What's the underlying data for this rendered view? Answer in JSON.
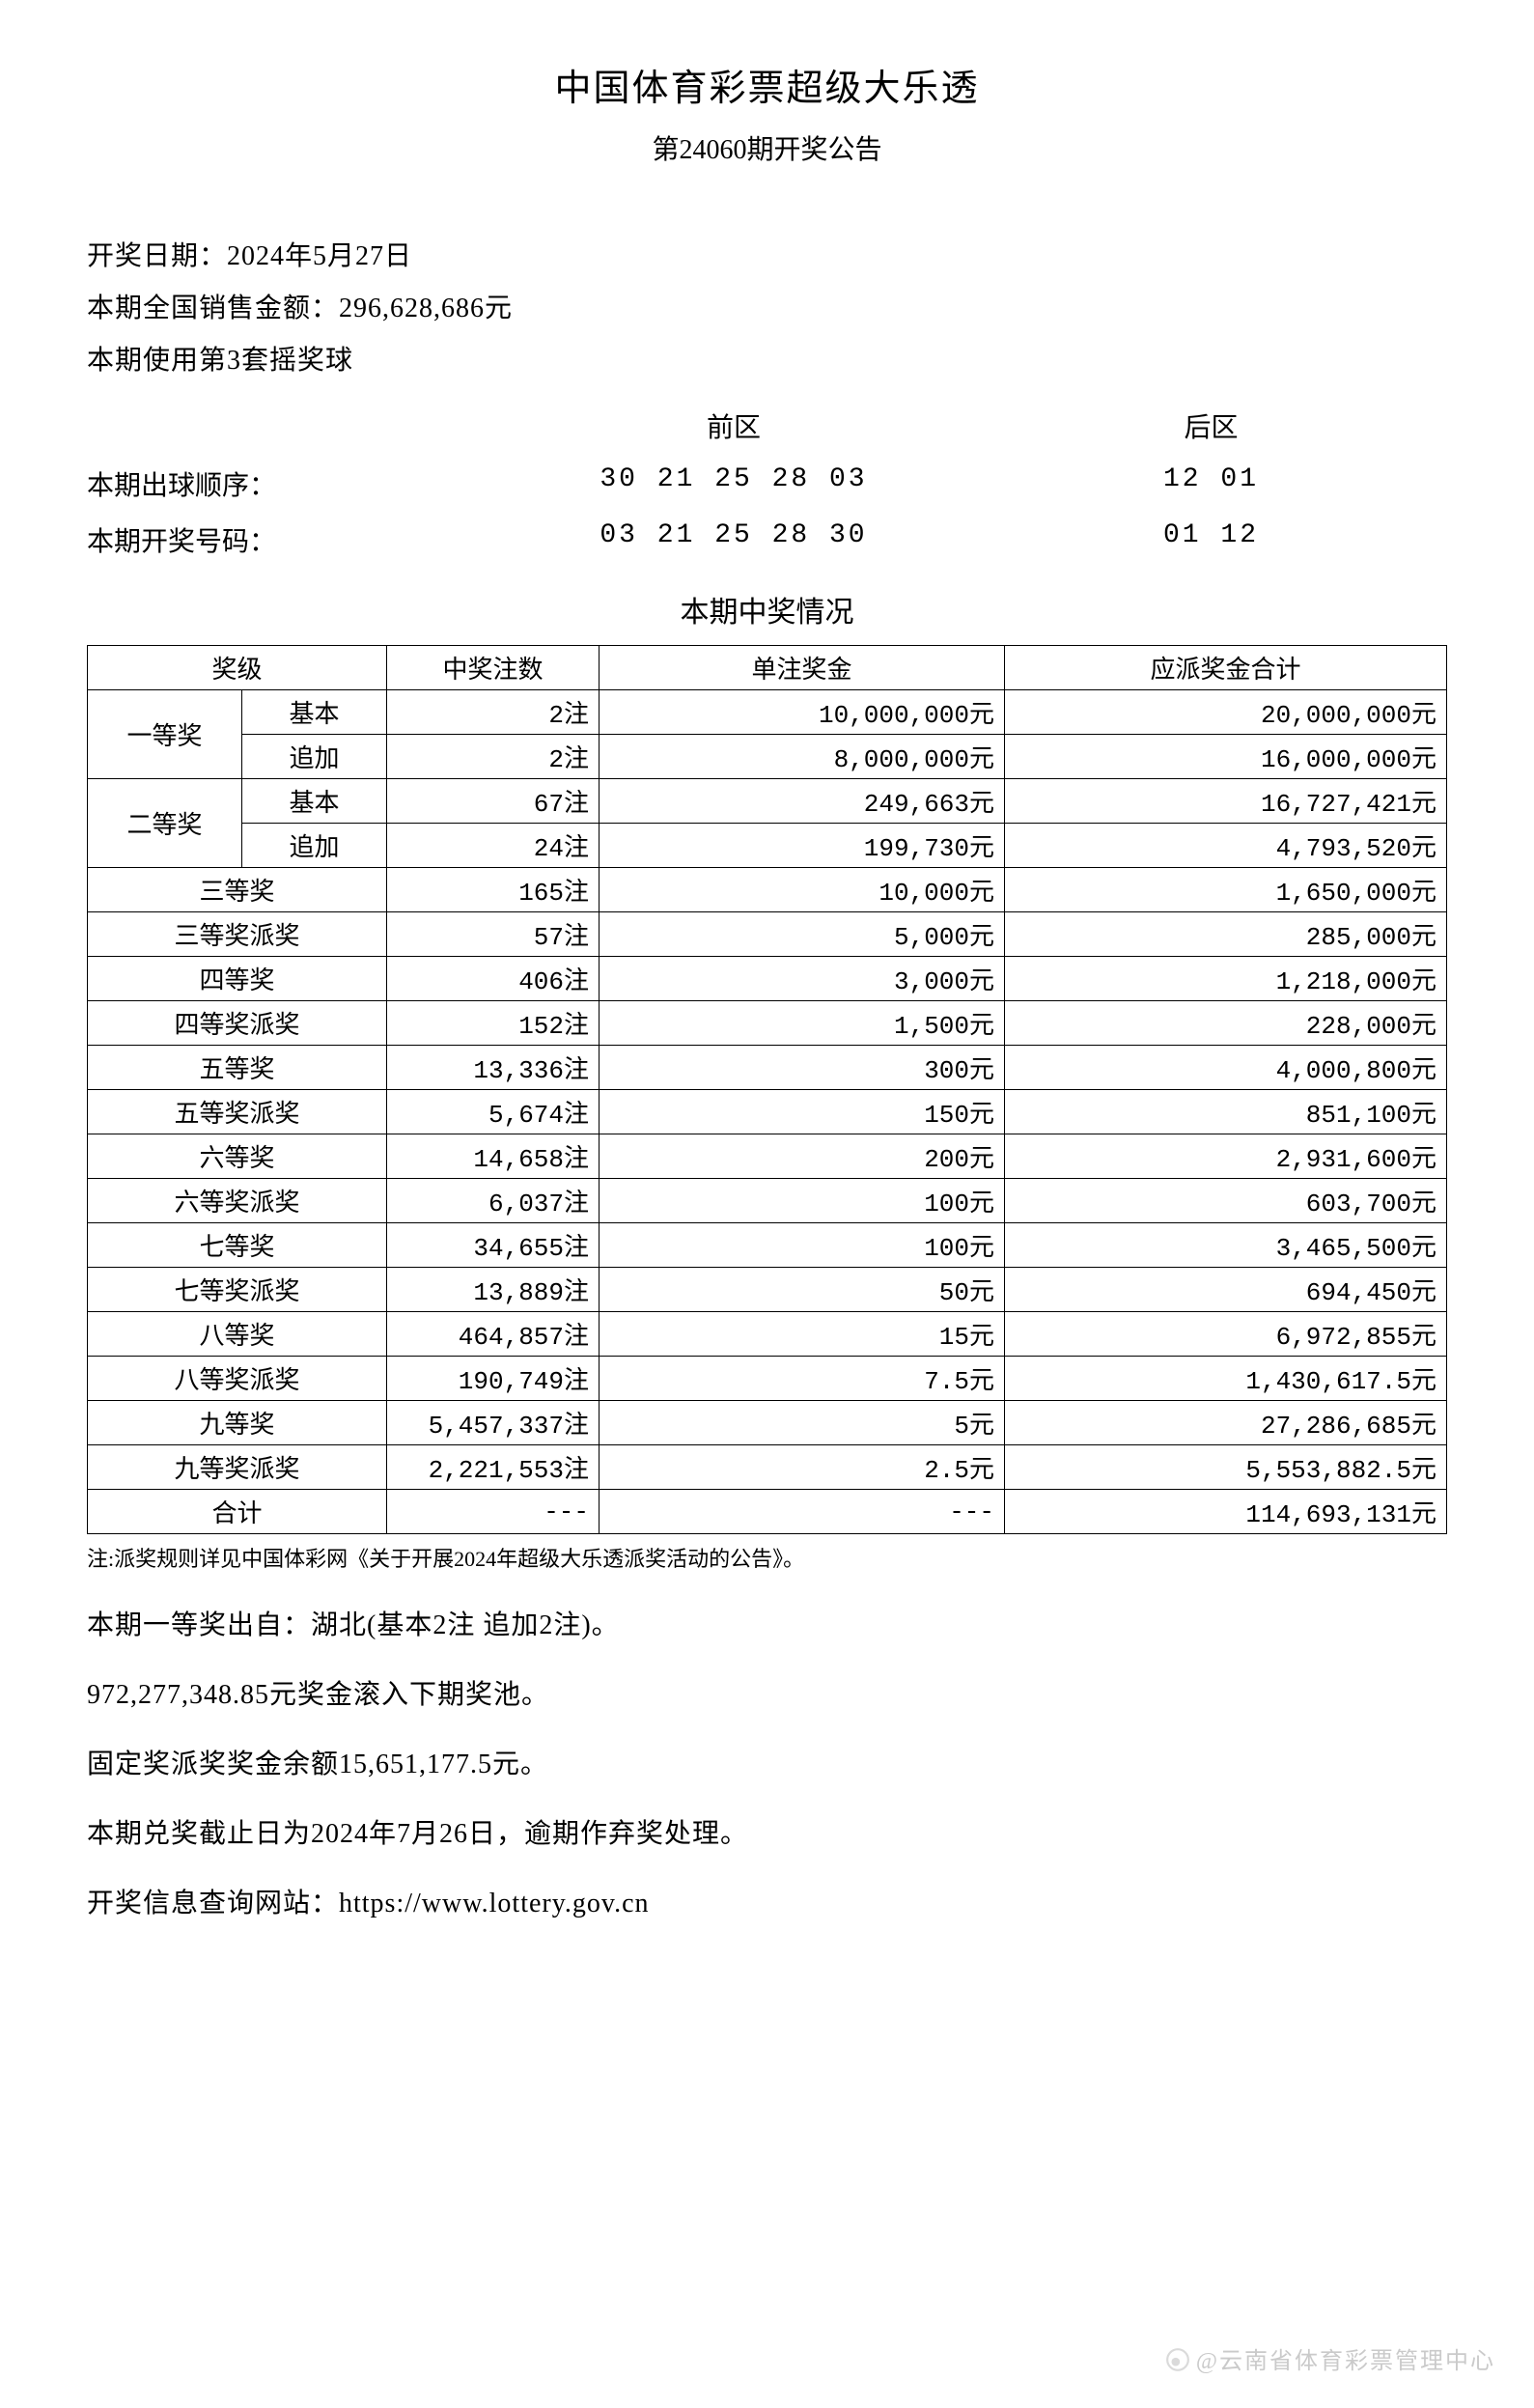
{
  "header": {
    "title": "中国体育彩票超级大乐透",
    "subtitle": "第24060期开奖公告"
  },
  "info": {
    "draw_date": "开奖日期：2024年5月27日",
    "sales_amount": "本期全国销售金额：296,628,686元",
    "ball_set": "本期使用第3套摇奖球"
  },
  "areas": {
    "front_label": "前区",
    "back_label": "后区"
  },
  "draw_order": {
    "label": "本期出球顺序：",
    "front": "30 21 25 28 03",
    "back": "12 01"
  },
  "winning_numbers": {
    "label": "本期开奖号码：",
    "front": "03 21 25 28 30",
    "back": "01 12"
  },
  "prize_section_title": "本期中奖情况",
  "table": {
    "headers": {
      "level": "奖级",
      "count": "中奖注数",
      "amount": "单注奖金",
      "total": "应派奖金合计"
    },
    "grouped": [
      {
        "level": "一等奖",
        "rows": [
          {
            "sub": "基本",
            "count": "2注",
            "amount": "10,000,000元",
            "total": "20,000,000元"
          },
          {
            "sub": "追加",
            "count": "2注",
            "amount": "8,000,000元",
            "total": "16,000,000元"
          }
        ]
      },
      {
        "level": "二等奖",
        "rows": [
          {
            "sub": "基本",
            "count": "67注",
            "amount": "249,663元",
            "total": "16,727,421元"
          },
          {
            "sub": "追加",
            "count": "24注",
            "amount": "199,730元",
            "total": "4,793,520元"
          }
        ]
      }
    ],
    "simple": [
      {
        "level": "三等奖",
        "count": "165注",
        "amount": "10,000元",
        "total": "1,650,000元"
      },
      {
        "level": "三等奖派奖",
        "count": "57注",
        "amount": "5,000元",
        "total": "285,000元"
      },
      {
        "level": "四等奖",
        "count": "406注",
        "amount": "3,000元",
        "total": "1,218,000元"
      },
      {
        "level": "四等奖派奖",
        "count": "152注",
        "amount": "1,500元",
        "total": "228,000元"
      },
      {
        "level": "五等奖",
        "count": "13,336注",
        "amount": "300元",
        "total": "4,000,800元"
      },
      {
        "level": "五等奖派奖",
        "count": "5,674注",
        "amount": "150元",
        "total": "851,100元"
      },
      {
        "level": "六等奖",
        "count": "14,658注",
        "amount": "200元",
        "total": "2,931,600元"
      },
      {
        "level": "六等奖派奖",
        "count": "6,037注",
        "amount": "100元",
        "total": "603,700元"
      },
      {
        "level": "七等奖",
        "count": "34,655注",
        "amount": "100元",
        "total": "3,465,500元"
      },
      {
        "level": "七等奖派奖",
        "count": "13,889注",
        "amount": "50元",
        "total": "694,450元"
      },
      {
        "level": "八等奖",
        "count": "464,857注",
        "amount": "15元",
        "total": "6,972,855元"
      },
      {
        "level": "八等奖派奖",
        "count": "190,749注",
        "amount": "7.5元",
        "total": "1,430,617.5元"
      },
      {
        "level": "九等奖",
        "count": "5,457,337注",
        "amount": "5元",
        "total": "27,286,685元"
      },
      {
        "level": "九等奖派奖",
        "count": "2,221,553注",
        "amount": "2.5元",
        "total": "5,553,882.5元"
      }
    ],
    "sum": {
      "level": "合计",
      "count": "---",
      "amount": "---",
      "total": "114,693,131元"
    }
  },
  "note": "注:派奖规则详见中国体彩网《关于开展2024年超级大乐透派奖活动的公告》。",
  "footer": {
    "origin": "本期一等奖出自：湖北(基本2注 追加2注)。",
    "rollover": "972,277,348.85元奖金滚入下期奖池。",
    "fixed_balance": "固定奖派奖奖金余额15,651,177.5元。",
    "deadline": "本期兑奖截止日为2024年7月26日，逾期作弃奖处理。",
    "website": "开奖信息查询网站：https://www.lottery.gov.cn"
  },
  "watermark": "@云南省体育彩票管理中心"
}
